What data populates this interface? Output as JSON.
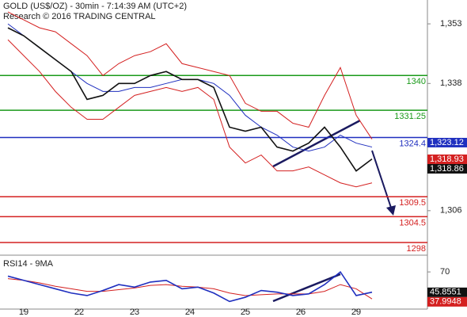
{
  "chart_data": [
    {
      "type": "line",
      "title": "GOLD (US$/OZ) - 30min - 7:14:39 AM (UTC+2)",
      "subtitle": "Research © 2016 TRADING CENTRAL",
      "x": [
        0,
        1,
        2,
        3,
        4,
        5,
        6,
        7,
        8,
        9,
        10,
        11,
        12,
        13,
        14,
        15,
        16,
        17,
        18,
        19,
        20,
        21,
        22,
        23
      ],
      "xlim": [
        -0.5,
        26.5
      ],
      "xticks": [
        {
          "value": 1,
          "label": "19"
        },
        {
          "value": 4.5,
          "label": "22"
        },
        {
          "value": 8,
          "label": "23"
        },
        {
          "value": 11.5,
          "label": "24"
        },
        {
          "value": 15,
          "label": "25"
        },
        {
          "value": 18.5,
          "label": "26"
        },
        {
          "value": 22,
          "label": "29"
        }
      ],
      "ylim": [
        1294.8,
        1359
      ],
      "yticks": [
        {
          "value": 1353,
          "label": "1,353"
        },
        {
          "value": 1338,
          "label": "1,338"
        },
        {
          "value": 1306,
          "label": "1,306"
        }
      ],
      "series": [
        {
          "color": "#1f2fbf",
          "values": [
            1353,
            1350,
            1347,
            1344,
            1341,
            1338,
            1336,
            1336,
            1337,
            1337,
            1338,
            1339,
            1339,
            1338,
            1335,
            1330,
            1327,
            1325,
            1322,
            1321,
            1322,
            1325,
            1323,
            1322
          ]
        },
        {
          "color": "#d42020",
          "values": [
            1356,
            1354,
            1352,
            1351,
            1348,
            1345,
            1340,
            1343,
            1345,
            1346,
            1348,
            1343,
            1342,
            1341,
            1340,
            1333,
            1331,
            1331,
            1328,
            1327,
            1335,
            1342,
            1330,
            1324
          ]
        },
        {
          "color": "#d42020",
          "values": [
            1349,
            1345,
            1341,
            1336,
            1332,
            1329,
            1329,
            1332,
            1335,
            1336,
            1337,
            1336,
            1337,
            1334,
            1322,
            1318,
            1320,
            1316,
            1316,
            1317,
            1315,
            1313,
            1312,
            1313
          ]
        },
        {
          "color": "#111111",
          "values": [
            1352,
            1350,
            1347,
            1344,
            1341,
            1334,
            1335,
            1338,
            1338,
            1340,
            1341,
            1339,
            1339,
            1337,
            1327,
            1326,
            1327,
            1322,
            1321,
            1323,
            1327,
            1322,
            1316,
            1319
          ]
        }
      ],
      "levels": [
        {
          "value": 1340,
          "color": "#1a9a1a"
        },
        {
          "value": 1331.25,
          "color": "#1a9a1a"
        },
        {
          "value": 1324.4,
          "color": "#1f2fbf"
        },
        {
          "value": 1309.5,
          "color": "#d42020"
        },
        {
          "value": 1304.5,
          "color": "#d42020"
        },
        {
          "value": 1298,
          "color": "#d42020"
        }
      ],
      "markers": [
        {
          "value": 1323.12,
          "label": "1,323.12",
          "color": "#1f2fbf"
        },
        {
          "value": 1318.93,
          "label": "1,318.93",
          "color": "#d42020"
        },
        {
          "value": 1318.86,
          "label": "1,318.86",
          "color": "#111111"
        }
      ]
    },
    {
      "type": "line",
      "title": "RSI14 - 9MA",
      "x": [
        0,
        1,
        2,
        3,
        4,
        5,
        6,
        7,
        8,
        9,
        10,
        11,
        12,
        13,
        14,
        15,
        16,
        17,
        18,
        19,
        20,
        21,
        22,
        23
      ],
      "xlim": [
        -0.5,
        26.5
      ],
      "ylim": [
        26,
        87
      ],
      "yticks": [
        70
      ],
      "series": [
        {
          "color": "#d42020",
          "values": [
            62,
            60,
            57,
            53,
            50,
            47,
            47,
            49,
            51,
            54,
            55,
            53,
            52,
            50,
            45,
            42,
            43,
            44,
            44,
            44,
            47,
            55,
            50,
            38
          ]
        },
        {
          "color": "#1f2fbf",
          "values": [
            65,
            60,
            55,
            50,
            45,
            42,
            48,
            55,
            52,
            58,
            60,
            50,
            52,
            45,
            35,
            40,
            48,
            46,
            42,
            44,
            55,
            70,
            42,
            46
          ]
        }
      ],
      "markers": [
        {
          "value": 45.8551,
          "color": "#111111"
        },
        {
          "value": 37.9948,
          "color": "#d42020"
        }
      ]
    }
  ]
}
